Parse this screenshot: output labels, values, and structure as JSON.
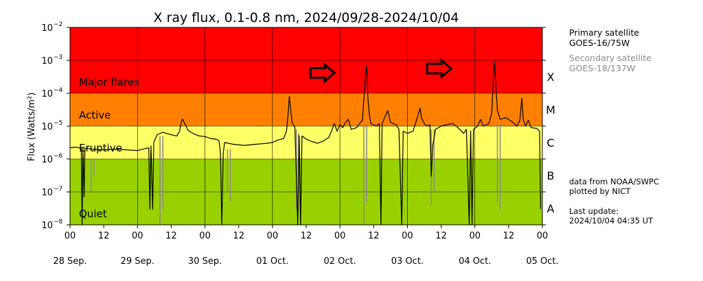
{
  "chart_data": {
    "type": "line",
    "title": "X ray flux, 0.1-0.8 nm, 2024/09/28-2024/10/04",
    "ylabel": "Flux (Watts/m²)",
    "yscale": "log",
    "ylim": [
      1e-08,
      0.01
    ],
    "xlim": [
      0,
      168
    ],
    "y_ticks": [
      {
        "label": "10",
        "exp": "-8"
      },
      {
        "label": "10",
        "exp": "-7"
      },
      {
        "label": "10",
        "exp": "-6"
      },
      {
        "label": "10",
        "exp": "-5"
      },
      {
        "label": "10",
        "exp": "-4"
      },
      {
        "label": "10",
        "exp": "-3"
      },
      {
        "label": "10",
        "exp": "-2"
      }
    ],
    "x_hour_ticks": [
      "00",
      "12",
      "00",
      "12",
      "00",
      "12",
      "00",
      "12",
      "00",
      "12",
      "00",
      "12",
      "00",
      "12",
      "00"
    ],
    "x_day_labels": [
      "28 Sep.",
      "29 Sep.",
      "30 Sep.",
      "01 Oct.",
      "02 Oct.",
      "03 Oct.",
      "04 Oct.",
      "05 Oct."
    ],
    "bands": [
      {
        "label": "Quiet",
        "from": 1e-08,
        "to": 1e-06,
        "color": "#99d100"
      },
      {
        "label": "Eruptive",
        "from": 1e-06,
        "to": 1e-05,
        "color": "#ffff66"
      },
      {
        "label": "Active",
        "from": 1e-05,
        "to": 0.0001,
        "color": "#ff8000"
      },
      {
        "label": "Major flares",
        "from": 0.0001,
        "to": 0.01,
        "color": "#ff0000"
      }
    ],
    "classes": [
      "A",
      "B",
      "C",
      "M",
      "X"
    ],
    "grid": true,
    "series": [
      {
        "name": "Primary satellite",
        "color": "#000000",
        "points": [
          [
            0,
            2.2e-06
          ],
          [
            2,
            2.3e-06
          ],
          [
            4,
            2.1e-06
          ],
          [
            4.3,
            1e-08
          ],
          [
            4.6,
            2.2e-06
          ],
          [
            5,
            7e-08
          ],
          [
            5.3,
            2.1e-06
          ],
          [
            8,
            2e-06
          ],
          [
            12,
            1.9e-06
          ],
          [
            16,
            2e-06
          ],
          [
            20,
            1.9e-06
          ],
          [
            24,
            1.8e-06
          ],
          [
            26,
            2e-06
          ],
          [
            28,
            2.2e-06
          ],
          [
            28.4,
            3e-08
          ],
          [
            28.8,
            2.5e-06
          ],
          [
            29.4,
            3e-08
          ],
          [
            29.8,
            3.2e-06
          ],
          [
            31,
            5.5e-06
          ],
          [
            33,
            6.5e-06
          ],
          [
            35,
            5.8e-06
          ],
          [
            37,
            5.2e-06
          ],
          [
            38,
            5e-06
          ],
          [
            39,
            7e-06
          ],
          [
            39.5,
            1.25e-05
          ],
          [
            40,
            1.65e-05
          ],
          [
            41,
            1.1e-05
          ],
          [
            42,
            7.5e-06
          ],
          [
            44,
            5.8e-06
          ],
          [
            46,
            5e-06
          ],
          [
            48,
            4.8e-06
          ],
          [
            50,
            4.2e-06
          ],
          [
            52,
            4e-06
          ],
          [
            53,
            3.6e-06
          ],
          [
            53.5,
            1.5e-06
          ],
          [
            54,
            1e-08
          ],
          [
            54.5,
            1.5e-06
          ],
          [
            55,
            3.2e-06
          ],
          [
            58,
            2.8e-06
          ],
          [
            62,
            2.6e-06
          ],
          [
            66,
            2.8e-06
          ],
          [
            70,
            3e-06
          ],
          [
            72,
            3.2e-06
          ],
          [
            74,
            3.8e-06
          ],
          [
            76,
            4.2e-06
          ],
          [
            77,
            7e-06
          ],
          [
            77.6,
            2.5e-05
          ],
          [
            78,
            8e-05
          ],
          [
            78.5,
            3e-05
          ],
          [
            79,
            1.3e-05
          ],
          [
            80,
            9e-06
          ],
          [
            81,
            1e-08
          ],
          [
            81.5,
            5e-06
          ],
          [
            82,
            1e-08
          ],
          [
            82.5,
            5e-06
          ],
          [
            84,
            4e-06
          ],
          [
            86,
            3.4e-06
          ],
          [
            88,
            3e-06
          ],
          [
            90,
            3.5e-06
          ],
          [
            92,
            4.5e-06
          ],
          [
            93,
            7e-06
          ],
          [
            94,
            1.2e-05
          ],
          [
            95,
            7e-06
          ],
          [
            96,
            1.1e-05
          ],
          [
            97,
            9e-06
          ],
          [
            98,
            1.3e-05
          ],
          [
            99,
            1.6e-05
          ],
          [
            100,
            8e-06
          ],
          [
            102,
            9e-06
          ],
          [
            103,
            1.2e-05
          ],
          [
            104,
            1.5e-05
          ],
          [
            105,
            0.00025
          ],
          [
            105.5,
            0.0007
          ],
          [
            106,
            6e-05
          ],
          [
            106.5,
            2.2e-05
          ],
          [
            107,
            1.2e-05
          ],
          [
            109,
            1e-05
          ],
          [
            110,
            1.2e-05
          ],
          [
            110.6,
            1e-08
          ],
          [
            111,
            1.2e-05
          ],
          [
            113,
            3e-05
          ],
          [
            114,
            1.3e-05
          ],
          [
            116,
            1.1e-05
          ],
          [
            117,
            8e-06
          ],
          [
            118,
            1e-08
          ],
          [
            118.5,
            7e-06
          ],
          [
            120,
            6e-06
          ],
          [
            122,
            7e-06
          ],
          [
            123,
            1.3e-05
          ],
          [
            124,
            2.5e-05
          ],
          [
            124.5,
            3.5e-05
          ],
          [
            125,
            1.8e-05
          ],
          [
            126,
            1.2e-05
          ],
          [
            127,
            1e-05
          ],
          [
            128,
            1.1e-05
          ],
          [
            128.5,
            3e-07
          ],
          [
            129,
            2.5e-06
          ],
          [
            130,
            8e-06
          ],
          [
            132,
            1e-05
          ],
          [
            134,
            1.1e-05
          ],
          [
            136,
            1.2e-05
          ],
          [
            138,
            9e-06
          ],
          [
            140,
            6e-06
          ],
          [
            141,
            8e-06
          ],
          [
            142,
            1e-08
          ],
          [
            142.5,
            7e-06
          ],
          [
            143,
            1e-08
          ],
          [
            143.5,
            8e-06
          ],
          [
            145,
            1e-05
          ],
          [
            146,
            1.6e-05
          ],
          [
            147,
            1e-05
          ],
          [
            149,
            1.2e-05
          ],
          [
            150,
            2.5e-05
          ],
          [
            150.5,
            0.00018
          ],
          [
            151,
            0.0009
          ],
          [
            151.5,
            0.00015
          ],
          [
            152,
            3e-05
          ],
          [
            153,
            1.6e-05
          ],
          [
            155,
            1.8e-05
          ],
          [
            157,
            1.4e-05
          ],
          [
            158,
            1.2e-05
          ],
          [
            159,
            1e-05
          ],
          [
            160,
            1.5e-05
          ],
          [
            160.7,
            7e-05
          ],
          [
            161.2,
            1.6e-05
          ],
          [
            162,
            1e-05
          ],
          [
            163,
            1.5e-05
          ],
          [
            164,
            9e-06
          ],
          [
            166,
            8.5e-06
          ],
          [
            167,
            7e-06
          ],
          [
            167.4,
            3e-08
          ]
        ]
      },
      {
        "name": "Secondary satellite",
        "color": "#8c8c8c",
        "dips": [
          [
            7.5,
            1e-06,
            1e-07
          ],
          [
            8.5,
            1e-06,
            3e-07
          ],
          [
            32,
            5e-06,
            1e-08
          ],
          [
            33,
            5e-06,
            3e-08
          ],
          [
            56,
            2e-06,
            1e-07
          ],
          [
            57,
            2e-06,
            5e-08
          ],
          [
            80.5,
            8e-06,
            3e-08
          ],
          [
            81.3,
            6e-06,
            1e-07
          ],
          [
            104.5,
            1e-05,
            1e-08
          ],
          [
            105.5,
            1e-05,
            5e-08
          ],
          [
            128.5,
            8e-06,
            4e-08
          ],
          [
            129.5,
            8e-06,
            1e-07
          ],
          [
            152,
            1.2e-05,
            5e-08
          ],
          [
            153,
            1.2e-05,
            3e-08
          ]
        ]
      }
    ],
    "annotations": [
      {
        "type": "arrow",
        "x": 96.5,
        "y": 0.0007
      },
      {
        "type": "arrow",
        "x": 138,
        "y": 0.00095
      }
    ]
  },
  "legend": {
    "primary_title": "Primary satellite",
    "primary_sat": "GOES-16/75W",
    "secondary_title": "Secondary satellite",
    "secondary_sat": "GOES-18/137W"
  },
  "credits": {
    "line1": "data from NOAA/SWPC",
    "line2": "plotted by NICT",
    "update_label": "Last update:",
    "update_time": "2024/10/04 04:35 UT"
  }
}
